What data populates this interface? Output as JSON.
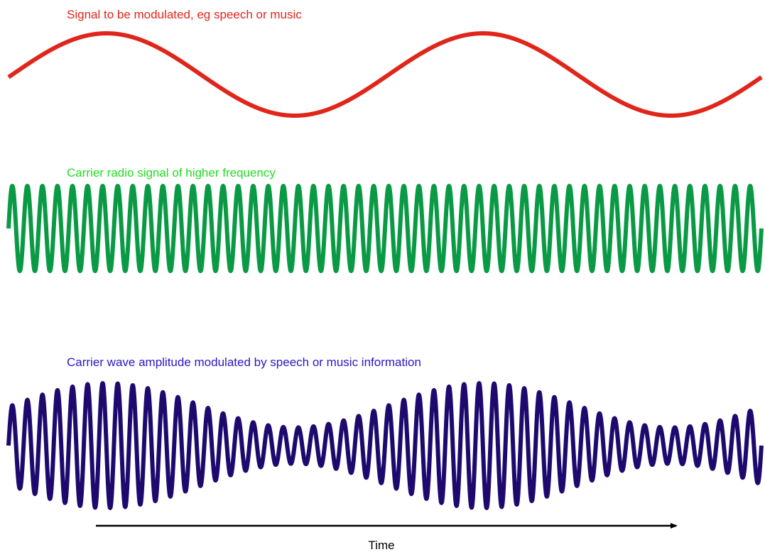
{
  "waves": {
    "message": {
      "label": "Signal to be modulated, eg speech or music",
      "color": "#e0261b",
      "cycles_shown": 2
    },
    "carrier": {
      "label": "Carrier radio signal of higher frequency",
      "label_color": "#22dd22",
      "color": "#0a9a45",
      "cycles_shown": 50
    },
    "modulated": {
      "label": "Carrier wave amplitude modulated by speech or music information",
      "color": "#1e0a6e",
      "label_color": "#2a18c8",
      "cycles_shown": 50,
      "modulation_depth": 0.55
    }
  },
  "time_axis": {
    "label": "Time",
    "color": "#000000"
  }
}
